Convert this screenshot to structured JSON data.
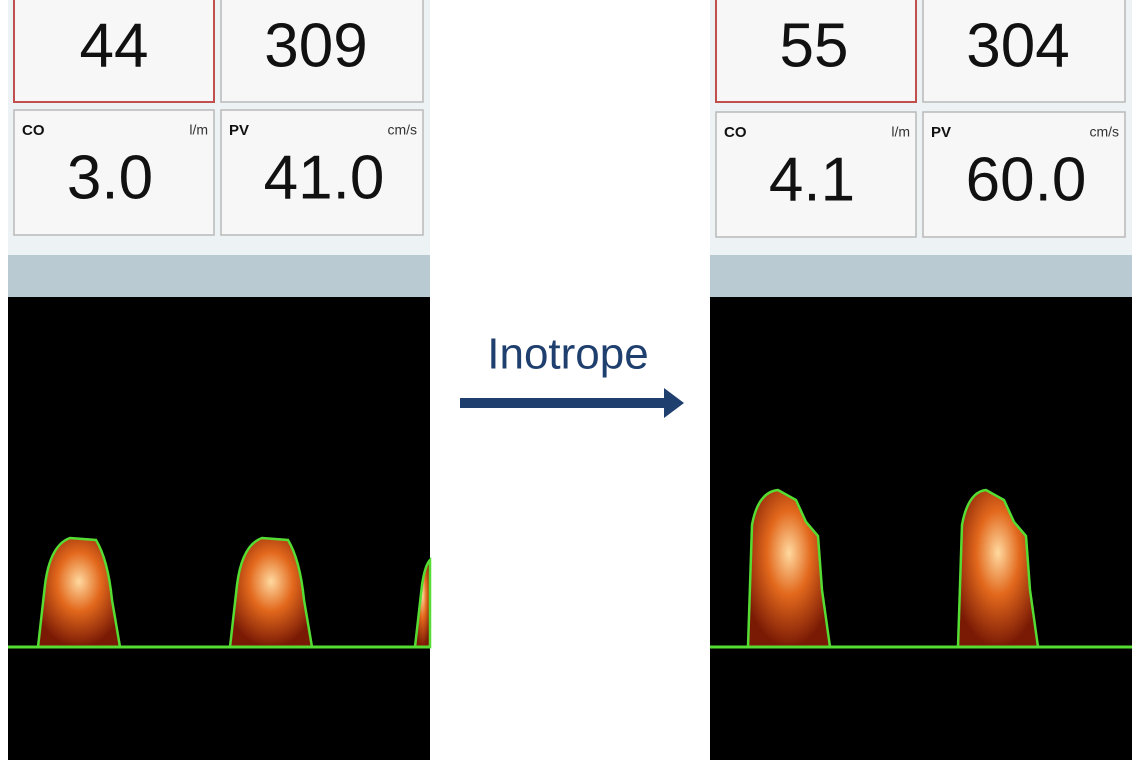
{
  "panels": [
    {
      "tiles": [
        {
          "value": "44"
        },
        {
          "value": "309"
        },
        {
          "label": "CO",
          "unit": "l/m",
          "value": "3.0"
        },
        {
          "label": "PV",
          "unit": "cm/s",
          "value": "41.0"
        }
      ]
    },
    {
      "tiles": [
        {
          "value": "55"
        },
        {
          "value": "304"
        },
        {
          "label": "CO",
          "unit": "l/m",
          "value": "4.1"
        },
        {
          "label": "PV",
          "unit": "cm/s",
          "value": "60.0"
        }
      ]
    }
  ],
  "arrow": {
    "label": "Inotrope"
  }
}
